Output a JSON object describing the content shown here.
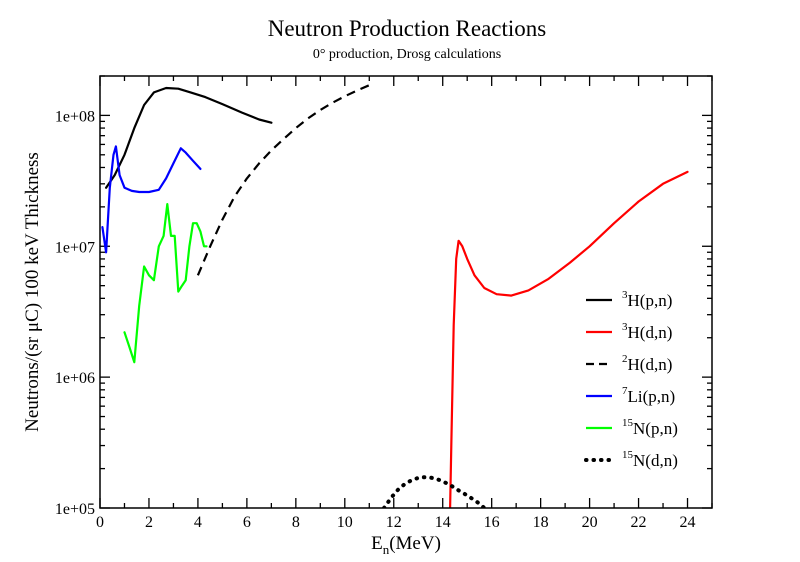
{
  "chart_data": {
    "type": "line",
    "title": "Neutron Production Reactions",
    "subtitle": "0° production, Drosg calculations",
    "xlabel": {
      "main": "E",
      "sub": "n",
      "rest": "(MeV)"
    },
    "ylabel": "Neutrons/(sr μC) 100 keV Thickness",
    "xlim": [
      0,
      25
    ],
    "ylim": [
      100000,
      200000000
    ],
    "yscale": "log",
    "x_major_ticks": [
      0,
      2,
      4,
      6,
      8,
      10,
      12,
      14,
      16,
      18,
      20,
      22,
      24
    ],
    "x_tick_labels": [
      "0",
      "2",
      "4",
      "6",
      "8",
      "10",
      "12",
      "14",
      "16",
      "18",
      "20",
      "22",
      "24"
    ],
    "y_major_ticks": [
      100000,
      1000000,
      10000000,
      100000000
    ],
    "y_tick_labels": [
      "1e+05",
      "1e+06",
      "1e+07",
      "1e+08"
    ],
    "legend_position": "right",
    "series": [
      {
        "name": "H(p,n)",
        "iso": "3",
        "color": "#000000",
        "dash": "solid",
        "x": [
          0.25,
          0.6,
          1.0,
          1.4,
          1.8,
          2.2,
          2.7,
          3.2,
          3.7,
          4.3,
          5.0,
          5.8,
          6.5,
          7.0
        ],
        "y": [
          28000000.0,
          35000000.0,
          50000000.0,
          80000000.0,
          120000000.0,
          150000000.0,
          162000000.0,
          160000000.0,
          150000000.0,
          138000000.0,
          122000000.0,
          105000000.0,
          93000000.0,
          88000000.0
        ]
      },
      {
        "name": "H(d,n)",
        "iso": "3",
        "color": "#ff0000",
        "dash": "solid",
        "x": [
          14.3,
          14.35,
          14.45,
          14.55,
          14.65,
          14.8,
          15.0,
          15.3,
          15.7,
          16.2,
          16.8,
          17.5,
          18.3,
          19.2,
          20.0,
          21.0,
          22.0,
          23.0,
          24.0
        ],
        "y": [
          100000,
          300000,
          2500000.0,
          8000000.0,
          11000000.0,
          10000000.0,
          8000000.0,
          6000000.0,
          4800000.0,
          4300000.0,
          4200000.0,
          4600000.0,
          5600000.0,
          7500000.0,
          10000000.0,
          15000000.0,
          22000000.0,
          30000000.0,
          37000000.0
        ]
      },
      {
        "name": "H(d,n)",
        "iso": "2",
        "color": "#000000",
        "dash": "dashed",
        "x": [
          4.0,
          4.5,
          5.0,
          5.5,
          6.0,
          6.5,
          7.0,
          7.5,
          8.0,
          8.5,
          9.0,
          9.5,
          10.0,
          10.5,
          11.0
        ],
        "y": [
          6000000.0,
          10000000.0,
          16000000.0,
          24000000.0,
          33000000.0,
          43000000.0,
          54000000.0,
          66000000.0,
          80000000.0,
          95000000.0,
          110000000.0,
          125000000.0,
          140000000.0,
          155000000.0,
          170000000.0
        ]
      },
      {
        "name": "Li(p,n)",
        "iso": "7",
        "color": "#0000ff",
        "dash": "solid",
        "x": [
          0.1,
          0.25,
          0.4,
          0.55,
          0.65,
          0.8,
          1.0,
          1.3,
          1.6,
          2.0,
          2.4,
          2.7,
          3.0,
          3.3,
          3.5,
          3.8,
          4.1
        ],
        "y": [
          14000000.0,
          9000000.0,
          28000000.0,
          50000000.0,
          58000000.0,
          35000000.0,
          28000000.0,
          26500000.0,
          26000000.0,
          26000000.0,
          27000000.0,
          33000000.0,
          43000000.0,
          56000000.0,
          52000000.0,
          45000000.0,
          39000000.0
        ]
      },
      {
        "name": "N(p,n)",
        "iso": "15",
        "color": "#00ff00",
        "dash": "solid",
        "x": [
          1.0,
          1.2,
          1.4,
          1.6,
          1.8,
          2.0,
          2.2,
          2.4,
          2.6,
          2.75,
          2.9,
          3.05,
          3.2,
          3.35,
          3.5,
          3.65,
          3.8,
          3.95,
          4.1,
          4.25,
          4.35
        ],
        "y": [
          2200000.0,
          1700000.0,
          1300000.0,
          3500000.0,
          7000000.0,
          6000000.0,
          5500000.0,
          10000000.0,
          12000000.0,
          21000000.0,
          12000000.0,
          12000000.0,
          4500000.0,
          5000000.0,
          5500000.0,
          10000000.0,
          15000000.0,
          15000000.0,
          13000000.0,
          10000000.0,
          10000000.0
        ]
      },
      {
        "name": "N(d,n)",
        "iso": "15",
        "color": "#000000",
        "dash": "dotted",
        "x": [
          11.6,
          11.9,
          12.2,
          12.5,
          12.8,
          13.1,
          13.4,
          13.7,
          14.0,
          14.3,
          14.6,
          14.9,
          15.2,
          15.5,
          15.7
        ],
        "y": [
          100000,
          120000,
          140000,
          155000,
          165000,
          172000,
          172000,
          168000,
          160000,
          150000,
          138000,
          128000,
          118000,
          108000,
          100000
        ]
      }
    ]
  }
}
